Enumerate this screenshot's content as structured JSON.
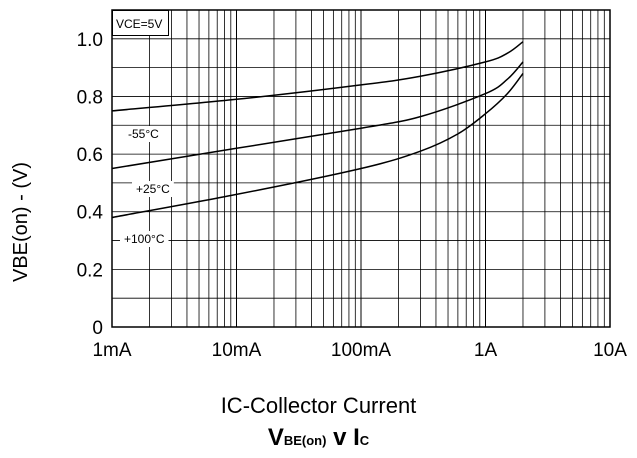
{
  "chart_data": {
    "type": "line",
    "title": "",
    "subtitle_parts": [
      "V",
      "BE(on)",
      " v I",
      "C"
    ],
    "xlabel": "IC-Collector Current",
    "ylabel": "VBE(on) - (V)",
    "x_scale": "log",
    "xlim": [
      "1mA",
      "10A"
    ],
    "ylim": [
      0,
      1.1
    ],
    "x_ticks": [
      "1mA",
      "10mA",
      "100mA",
      "1A",
      "10A"
    ],
    "y_ticks": [
      "0",
      "0.2",
      "0.4",
      "0.6",
      "0.8",
      "1.0"
    ],
    "grid": true,
    "annotation": "VCE=5V",
    "series": [
      {
        "name": "-55°C",
        "x": [
          "1mA",
          "10mA",
          "100mA",
          "300mA",
          "1A",
          "1.5A",
          "2A"
        ],
        "y": [
          0.75,
          0.79,
          0.84,
          0.87,
          0.92,
          0.95,
          0.99
        ]
      },
      {
        "name": "+25°C",
        "x": [
          "1mA",
          "10mA",
          "100mA",
          "300mA",
          "1A",
          "1.5A",
          "2A"
        ],
        "y": [
          0.55,
          0.62,
          0.69,
          0.73,
          0.81,
          0.86,
          0.92
        ]
      },
      {
        "name": "+100°C",
        "x": [
          "1mA",
          "10mA",
          "100mA",
          "300mA",
          "600mA",
          "1A",
          "1.5A",
          "2A"
        ],
        "y": [
          0.38,
          0.46,
          0.55,
          0.61,
          0.67,
          0.74,
          0.81,
          0.88
        ]
      }
    ]
  }
}
